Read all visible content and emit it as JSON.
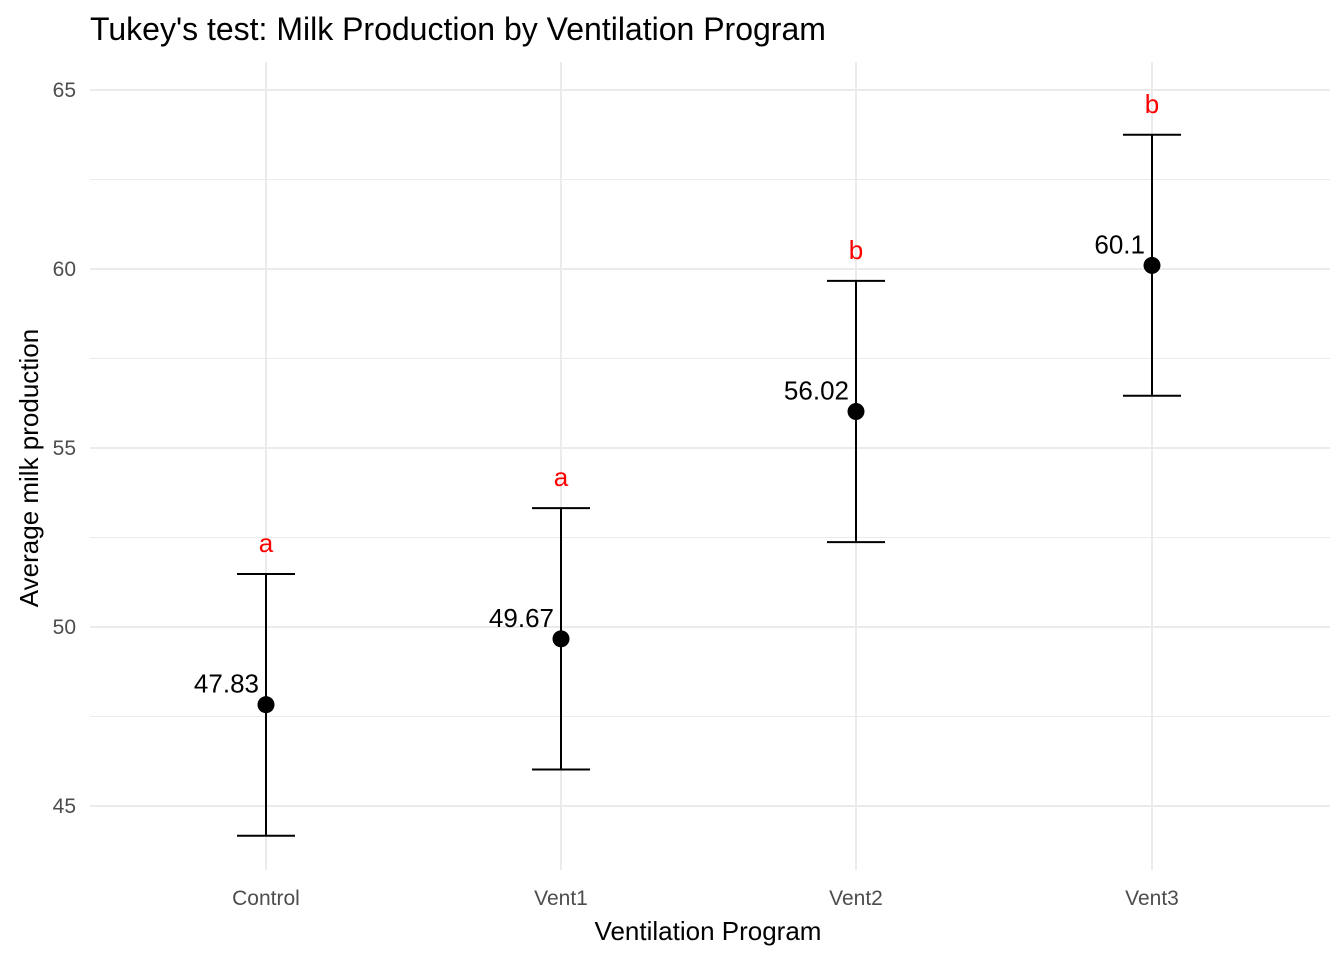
{
  "chart_data": {
    "type": "scatter",
    "title": "Tukey's test: Milk Production by Ventilation Program",
    "xlabel": "Ventilation Program",
    "ylabel": "Average milk production",
    "categories": [
      "Control",
      "Vent1",
      "Vent2",
      "Vent3"
    ],
    "means": [
      47.83,
      49.67,
      56.02,
      60.1
    ],
    "mean_labels": [
      "47.83",
      "49.67",
      "56.02",
      "60.1"
    ],
    "lower": [
      44.17,
      46.02,
      52.37,
      56.46
    ],
    "upper": [
      51.48,
      53.32,
      59.67,
      63.75
    ],
    "groups": [
      "a",
      "a",
      "b",
      "b"
    ],
    "yticks": [
      45,
      50,
      55,
      60,
      65
    ],
    "ylim": [
      43.2,
      65.9
    ],
    "grid": true,
    "colors": {
      "group_letter": "#ff0000",
      "point": "#000000",
      "grid": "#ebebeb",
      "tick_text": "#4d4d4d"
    }
  }
}
